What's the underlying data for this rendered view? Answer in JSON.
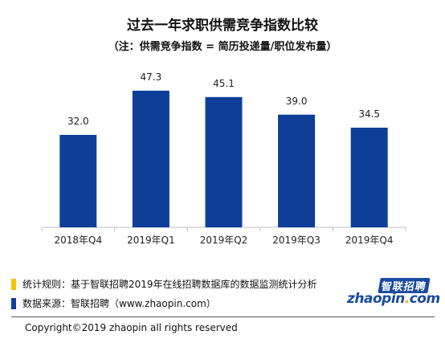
{
  "chart_data": {
    "type": "bar",
    "title": "过去一年求职供需竞争指数比较",
    "subtitle": "（注：供需竞争指数 = 简历投递量/职位发布量）",
    "categories": [
      "2018年Q4",
      "2019年Q1",
      "2019年Q2",
      "2019年Q3",
      "2019年Q4"
    ],
    "values": [
      32.0,
      47.3,
      45.1,
      39.0,
      34.5
    ],
    "value_labels": [
      "32.0",
      "47.3",
      "45.1",
      "39.0",
      "34.5"
    ],
    "xlabel": "",
    "ylabel": "",
    "ylim": [
      0,
      52
    ],
    "grid": false,
    "legend": "none",
    "bar_color": "#0d3f99"
  },
  "notes": [
    {
      "text": "统计规则：基于智联招聘2019年在线招聘数据库的数据监测统计分析",
      "marker_color": "#f5c400"
    },
    {
      "text": "数据来源：智联招聘（www.zhaopin.com）",
      "marker_color": "#0d3f99"
    }
  ],
  "copyright": "Copyright©2019 zhaopin all rights reserved",
  "logo": {
    "top_text": "智联招聘",
    "bottom_main": "zhaopin",
    "bottom_dot": ".",
    "bottom_end": "com",
    "color": "#1a4aa0",
    "accent": "#f2b705"
  }
}
